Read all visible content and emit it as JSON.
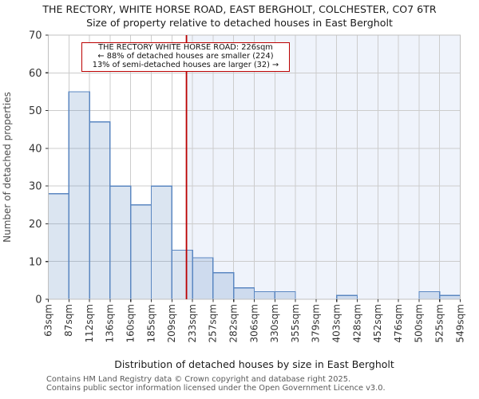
{
  "title": "THE RECTORY, WHITE HORSE ROAD, EAST BERGHOLT, COLCHESTER, CO7 6TR",
  "subtitle": "Size of property relative to detached houses in East Bergholt",
  "annotation": {
    "line1": "THE RECTORY WHITE HORSE ROAD: 226sqm",
    "line2": "← 88% of detached houses are smaller (224)",
    "line3": "13% of semi-detached houses are larger (32) →"
  },
  "chart_data": {
    "type": "bar",
    "histogram": true,
    "title": "THE RECTORY, WHITE HORSE ROAD, EAST BERGHOLT, COLCHESTER, CO7 6TR",
    "subtitle": "Size of property relative to detached houses in East Bergholt",
    "xlabel": "Distribution of detached houses by size in East Bergholt",
    "ylabel": "Number of detached properties",
    "bin_edges_sqm": [
      63,
      87,
      112,
      136,
      160,
      185,
      209,
      233,
      257,
      282,
      306,
      330,
      355,
      379,
      403,
      428,
      452,
      476,
      500,
      525,
      549
    ],
    "x_tick_labels": [
      "63sqm",
      "87sqm",
      "112sqm",
      "136sqm",
      "160sqm",
      "185sqm",
      "209sqm",
      "233sqm",
      "257sqm",
      "282sqm",
      "306sqm",
      "330sqm",
      "355sqm",
      "379sqm",
      "403sqm",
      "428sqm",
      "452sqm",
      "476sqm",
      "500sqm",
      "525sqm",
      "549sqm"
    ],
    "values": [
      28,
      55,
      47,
      30,
      25,
      30,
      13,
      11,
      7,
      3,
      2,
      2,
      0,
      0,
      1,
      0,
      0,
      0,
      2,
      1
    ],
    "ylim": [
      0,
      70
    ],
    "ytick_step": 10,
    "marker_value_sqm": 226,
    "grid": true,
    "legend_position": "none",
    "shaded_region": "right of marker"
  },
  "colors": {
    "bar_fill": "rgba(91,135,193,0.22)",
    "bar_edge": "#5b87c1",
    "marker_line": "#bb0000",
    "annotation_border": "#bb0000",
    "shade_right": "#eff3fb",
    "grid": "#cccccc",
    "spine": "#c0c0c0",
    "tick": "#333333",
    "tick_label": "#333333",
    "axis_label": "#4d4d4d"
  },
  "footer": {
    "line1": "Contains HM Land Registry data © Crown copyright and database right 2025.",
    "line2": "Contains public sector information licensed under the Open Government Licence v3.0."
  }
}
